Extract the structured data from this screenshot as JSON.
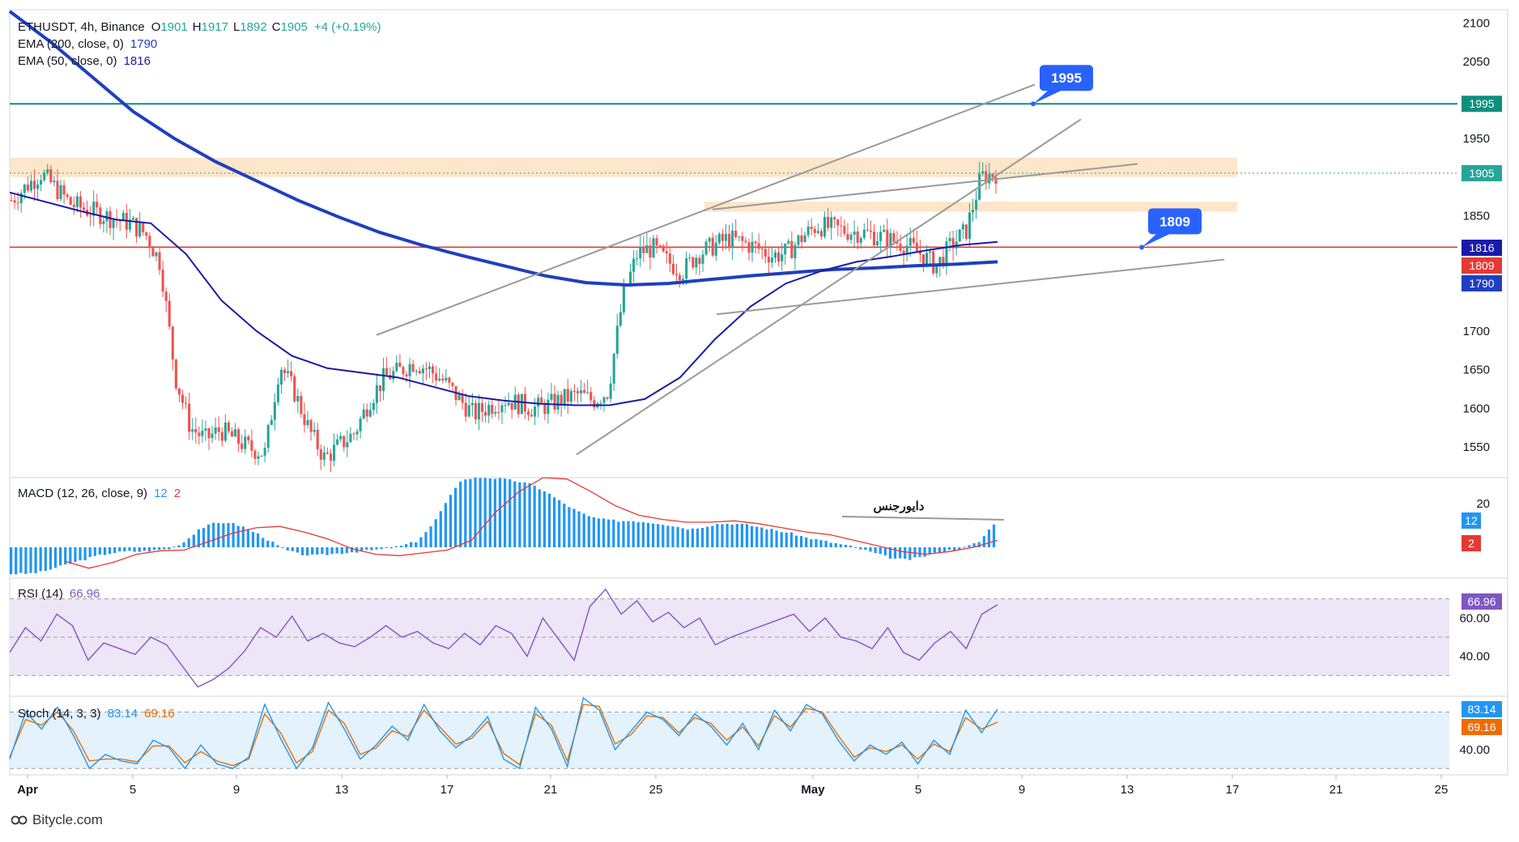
{
  "header": {
    "symbol": "ETHUSDT, 4h, Binance",
    "o_label": "O",
    "o_value": "1901",
    "h_label": "H",
    "h_value": "1917",
    "l_label": "L",
    "l_value": "1892",
    "c_label": "C",
    "c_value": "1905",
    "change": "+4 (+0.19%)",
    "ema200_label": "EMA (200, close, 0)",
    "ema200_value": "1790",
    "ema50_label": "EMA (50, close, 0)",
    "ema50_value": "1816"
  },
  "macd": {
    "label": "MACD (12, 26, close, 9)",
    "macd_value": "12",
    "signal_value": "2",
    "annotation": "دایورجنس"
  },
  "rsi": {
    "label": "RSI (14)",
    "value": "66.96"
  },
  "stoch": {
    "label": "Stoch (14, 3, 3)",
    "k_value": "83.14",
    "d_value": "69.16"
  },
  "callouts": {
    "upper": "1995",
    "lower": "1809"
  },
  "watermark": "Bitycle.com",
  "colors": {
    "up": "#26a69a",
    "down": "#ef5350",
    "ema200": "#1f3fbf",
    "ema50": "#1a1aa8",
    "resistance_line": "#0f8f7c",
    "support_line": "#e53935",
    "zone": "#fde2c0",
    "trendline": "#9a9a9a",
    "callout": "#2962ff",
    "macd_hist_up": "#2196f3",
    "macd_signal": "#e53935",
    "rsi_line": "#7e57c2",
    "rsi_band": "#ece6f7",
    "stoch_k": "#2196f3",
    "stoch_d": "#ef6c00",
    "stoch_band": "#e3f2fd"
  },
  "chart_data": [
    {
      "type": "candlestick",
      "title": "ETHUSDT, 4h, Binance",
      "x_ticks": [
        "Apr",
        "5",
        "9",
        "13",
        "17",
        "21",
        "25",
        "May",
        "5",
        "9",
        "13",
        "17",
        "21",
        "25"
      ],
      "y_ticks": [
        2100,
        2050,
        1950,
        1850,
        1700,
        1650,
        1600,
        1550
      ],
      "ylim": [
        1510,
        2115
      ],
      "ohlc_last": {
        "open": 1901,
        "high": 1917,
        "low": 1892,
        "close": 1905
      },
      "price_path": [
        1870,
        1888,
        1905,
        1885,
        1865,
        1858,
        1852,
        1845,
        1840,
        1826,
        1788,
        1640,
        1575,
        1560,
        1572,
        1560,
        1548,
        1542,
        1658,
        1620,
        1570,
        1535,
        1552,
        1568,
        1610,
        1640,
        1648,
        1660,
        1650,
        1635,
        1612,
        1592,
        1602,
        1612,
        1606,
        1600,
        1604,
        1612,
        1618,
        1610,
        1622,
        1745,
        1802,
        1808,
        1790,
        1778,
        1800,
        1810,
        1820,
        1815,
        1808,
        1798,
        1802,
        1822,
        1837,
        1834,
        1830,
        1828,
        1824,
        1818,
        1812,
        1800,
        1784,
        1812,
        1830,
        1900,
        1905
      ],
      "series": [
        {
          "name": "EMA (200, close, 0)",
          "last": 1790,
          "values": [
            2120,
            2075,
            2030,
            1985,
            1950,
            1920,
            1895,
            1870,
            1848,
            1828,
            1812,
            1798,
            1785,
            1772,
            1763,
            1760,
            1762,
            1767,
            1772,
            1776,
            1780,
            1782,
            1785,
            1787,
            1790
          ]
        },
        {
          "name": "EMA (50, close, 0)",
          "last": 1816,
          "values": [
            1880,
            1868,
            1856,
            1845,
            1840,
            1800,
            1740,
            1700,
            1668,
            1652,
            1646,
            1640,
            1628,
            1616,
            1610,
            1606,
            1604,
            1604,
            1612,
            1640,
            1690,
            1732,
            1762,
            1778,
            1790,
            1797,
            1805,
            1812,
            1816
          ]
        }
      ],
      "horizontal_levels": [
        {
          "label": "1995",
          "value": 1995
        },
        {
          "label": "1905",
          "value": 1905
        },
        {
          "label": "1816",
          "value": 1816
        },
        {
          "label": "1809",
          "value": 1809
        },
        {
          "label": "1790",
          "value": 1790
        }
      ],
      "zones": [
        {
          "from": 1900,
          "to": 1925
        },
        {
          "from": 1855,
          "to": 1868
        }
      ]
    },
    {
      "type": "bar",
      "title": "MACD (12, 26, close, 9)",
      "y_ticks": [
        20
      ],
      "series": [
        {
          "name": "MACD",
          "last": 12
        },
        {
          "name": "Signal",
          "last": 2
        }
      ]
    },
    {
      "type": "line",
      "title": "RSI (14)",
      "y_ticks": [
        60,
        40
      ],
      "ylim": [
        20,
        80
      ],
      "series": [
        {
          "name": "RSI (14)",
          "last": 66.96,
          "values": [
            42,
            55,
            48,
            62,
            56,
            38,
            47,
            44,
            41,
            50,
            46,
            35,
            24,
            28,
            34,
            43,
            55,
            50,
            61,
            48,
            52,
            47,
            45,
            50,
            56,
            50,
            53,
            47,
            44,
            52,
            46,
            56,
            52,
            40,
            60,
            49,
            38,
            66,
            75,
            62,
            69,
            58,
            63,
            55,
            60,
            46,
            50,
            53,
            56,
            59,
            62,
            53,
            60,
            50,
            48,
            44,
            55,
            42,
            38,
            47,
            53,
            44,
            62,
            66.96
          ]
        }
      ]
    },
    {
      "type": "line",
      "title": "Stoch (14, 3, 3)",
      "y_ticks": [
        40
      ],
      "ylim": [
        15,
        95
      ],
      "series": [
        {
          "name": "%K",
          "last": 83.14,
          "values": [
            30,
            80,
            62,
            85,
            55,
            20,
            35,
            28,
            25,
            50,
            42,
            20,
            45,
            25,
            20,
            32,
            88,
            52,
            20,
            42,
            90,
            62,
            30,
            45,
            65,
            50,
            88,
            60,
            42,
            55,
            75,
            30,
            20,
            85,
            62,
            22,
            95,
            82,
            40,
            60,
            80,
            72,
            55,
            78,
            65,
            45,
            68,
            40,
            82,
            60,
            88,
            78,
            50,
            28,
            45,
            35,
            48,
            25,
            50,
            35,
            82,
            58,
            83.14
          ]
        },
        {
          "name": "%D",
          "last": 69.16,
          "values": [
            32,
            72,
            66,
            80,
            60,
            28,
            30,
            30,
            27,
            44,
            44,
            26,
            38,
            28,
            23,
            30,
            78,
            58,
            26,
            38,
            82,
            68,
            35,
            42,
            60,
            54,
            82,
            64,
            46,
            52,
            70,
            36,
            24,
            78,
            66,
            28,
            88,
            86,
            46,
            56,
            76,
            74,
            58,
            74,
            68,
            50,
            64,
            44,
            76,
            64,
            84,
            80,
            55,
            32,
            42,
            38,
            45,
            30,
            46,
            38,
            74,
            62,
            69.16
          ]
        }
      ]
    }
  ]
}
